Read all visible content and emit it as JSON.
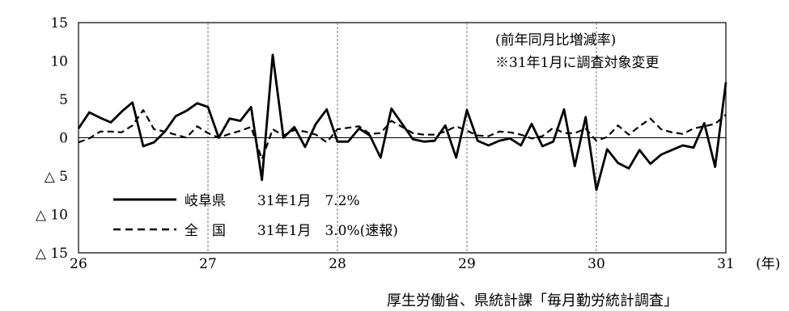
{
  "chart_data": {
    "type": "line",
    "x_unit": "(年)",
    "x_ticks": [
      "26",
      "27",
      "28",
      "29",
      "30",
      "31"
    ],
    "x_start": 26,
    "x_step_months": 1,
    "y_ticks": [
      "15",
      "10",
      "5",
      "0",
      "△ 5",
      "△ 10",
      "△ 15"
    ],
    "ylim": [
      -15,
      15
    ],
    "grid": "vertical dashed at year boundaries",
    "annotation_lines": [
      "(前年同月比増減率)",
      "※31年1月に調査対象変更"
    ],
    "source": "厚生労働省、県統計課「毎月勤労統計調査」",
    "legend_position": "bottom-left",
    "series": [
      {
        "name": "岐阜県",
        "legend_note": "31年1月　7.2%",
        "style": "solid",
        "values": [
          1.2,
          3.3,
          2.6,
          2.0,
          3.4,
          4.6,
          -1.1,
          -0.6,
          0.8,
          2.8,
          3.5,
          4.5,
          4.0,
          0.0,
          2.5,
          2.2,
          4.0,
          -5.5,
          10.8,
          0.0,
          1.4,
          -1.2,
          1.8,
          3.7,
          -0.5,
          -0.5,
          1.2,
          0.3,
          -2.6,
          3.8,
          1.8,
          -0.2,
          -0.5,
          -0.4,
          1.6,
          -2.6,
          3.6,
          -0.4,
          -1.0,
          -0.4,
          -0.1,
          -1.0,
          1.8,
          -1.1,
          -0.5,
          3.7,
          -3.7,
          2.7,
          -6.8,
          -1.5,
          -3.3,
          -4.0,
          -1.6,
          -3.4,
          -2.2,
          -1.6,
          -1.0,
          -1.3,
          1.9,
          -3.8,
          7.2
        ]
      },
      {
        "name": "全　国",
        "legend_note": "31年1月　3.0%(速報)",
        "style": "dashed",
        "values": [
          -0.6,
          -0.1,
          0.8,
          0.8,
          0.7,
          1.6,
          3.6,
          1.1,
          0.8,
          0.4,
          0.0,
          1.5,
          0.6,
          0.0,
          0.5,
          0.9,
          1.4,
          -2.8,
          1.1,
          0.3,
          1.0,
          0.8,
          0.4,
          -0.6,
          1.1,
          1.3,
          1.5,
          0.5,
          0.6,
          2.2,
          1.4,
          0.6,
          0.4,
          0.4,
          0.8,
          1.5,
          0.9,
          0.3,
          0.2,
          0.8,
          0.7,
          0.4,
          -0.1,
          0.2,
          1.3,
          0.6,
          0.6,
          1.2,
          -0.4,
          0.1,
          1.6,
          0.4,
          1.5,
          2.5,
          1.1,
          0.7,
          0.5,
          1.2,
          1.5,
          1.8,
          3.0
        ]
      }
    ]
  }
}
